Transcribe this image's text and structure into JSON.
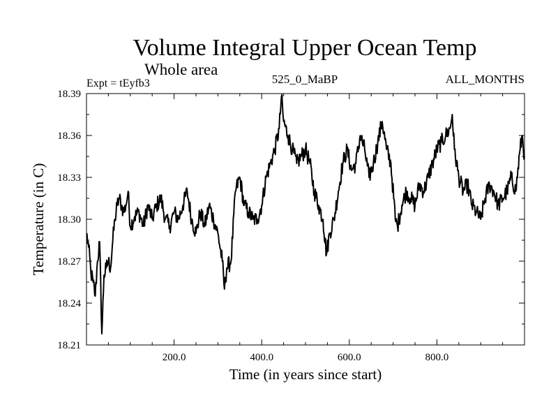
{
  "chart_data": {
    "type": "line",
    "title": "Volume Integral Upper Ocean Temp",
    "subtitle": "Whole area",
    "expt_label": "Expt = tEyfb3",
    "center_label": "525_0_MaBP",
    "right_label": "ALL_MONTHS",
    "xlabel": "Time (in years since start)",
    "ylabel": "Temperature (in C)",
    "xlim": [
      0,
      1000
    ],
    "ylim": [
      18.21,
      18.39
    ],
    "x_ticks": [
      200,
      400,
      600,
      800
    ],
    "x_tick_labels": [
      "200.0",
      "400.0",
      "600.0",
      "800.0"
    ],
    "y_ticks": [
      18.21,
      18.24,
      18.27,
      18.3,
      18.33,
      18.36,
      18.39
    ],
    "y_tick_labels": [
      "18.21",
      "18.24",
      "18.27",
      "18.30",
      "18.33",
      "18.36",
      "18.39"
    ],
    "grid": false,
    "series": [
      {
        "name": "Volume Integral Upper Ocean Temp",
        "x": [
          0,
          5,
          10,
          15,
          20,
          25,
          30,
          35,
          40,
          45,
          50,
          55,
          60,
          65,
          70,
          75,
          80,
          85,
          90,
          95,
          100,
          110,
          120,
          130,
          140,
          150,
          160,
          170,
          180,
          190,
          200,
          210,
          220,
          230,
          240,
          250,
          260,
          270,
          280,
          290,
          300,
          310,
          315,
          320,
          330,
          340,
          350,
          360,
          370,
          380,
          390,
          400,
          410,
          420,
          430,
          440,
          445,
          450,
          460,
          470,
          480,
          490,
          500,
          510,
          520,
          530,
          540,
          548,
          555,
          565,
          575,
          585,
          595,
          605,
          615,
          625,
          635,
          645,
          655,
          665,
          675,
          685,
          695,
          705,
          710,
          720,
          730,
          740,
          750,
          760,
          770,
          780,
          790,
          800,
          810,
          820,
          830,
          835,
          840,
          850,
          860,
          870,
          880,
          890,
          900,
          910,
          920,
          930,
          940,
          950,
          960,
          970,
          980,
          990,
          995,
          1000
        ],
        "values": [
          18.29,
          18.28,
          18.262,
          18.255,
          18.245,
          18.27,
          18.284,
          18.218,
          18.26,
          18.265,
          18.27,
          18.265,
          18.285,
          18.3,
          18.31,
          18.315,
          18.31,
          18.305,
          18.31,
          18.32,
          18.295,
          18.302,
          18.305,
          18.295,
          18.31,
          18.3,
          18.31,
          18.315,
          18.3,
          18.295,
          18.305,
          18.3,
          18.31,
          18.32,
          18.3,
          18.29,
          18.305,
          18.295,
          18.31,
          18.3,
          18.29,
          18.27,
          18.25,
          18.265,
          18.27,
          18.32,
          18.33,
          18.31,
          18.305,
          18.3,
          18.3,
          18.31,
          18.33,
          18.34,
          18.35,
          18.365,
          18.388,
          18.37,
          18.36,
          18.35,
          18.34,
          18.345,
          18.35,
          18.34,
          18.32,
          18.31,
          18.3,
          18.275,
          18.29,
          18.3,
          18.32,
          18.34,
          18.35,
          18.335,
          18.34,
          18.36,
          18.35,
          18.33,
          18.34,
          18.355,
          18.37,
          18.35,
          18.34,
          18.3,
          18.295,
          18.31,
          18.32,
          18.315,
          18.31,
          18.325,
          18.32,
          18.33,
          18.34,
          18.35,
          18.355,
          18.36,
          18.365,
          18.375,
          18.35,
          18.33,
          18.32,
          18.325,
          18.31,
          18.305,
          18.3,
          18.315,
          18.325,
          18.32,
          18.31,
          18.315,
          18.32,
          18.33,
          18.32,
          18.35,
          18.36,
          18.345
        ]
      }
    ]
  }
}
